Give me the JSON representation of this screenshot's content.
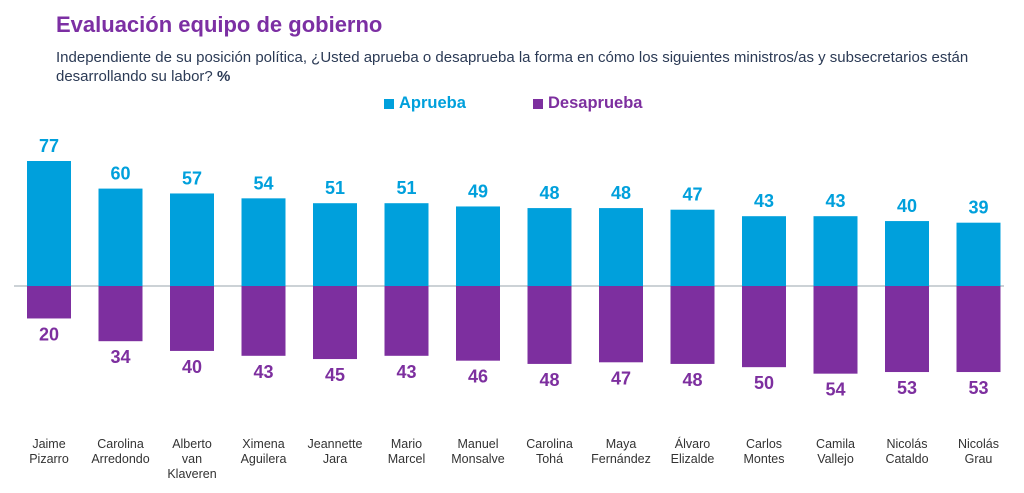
{
  "title": "Evaluación equipo de gobierno",
  "subtitle": "Independiente de su posición política, ¿Usted aprueba o desaprueba la forma en cómo los siguientes ministros/as y subsecretarios están desarrollando su labor?",
  "subtitle_unit": "%",
  "colors": {
    "approve": "#00a0dc",
    "disapprove": "#7d2f9f",
    "title": "#7c2fa3",
    "axis": "#9aa4ae"
  },
  "chart_data": {
    "type": "bar",
    "title": "Evaluación equipo de gobierno",
    "categories": [
      [
        "Jaime",
        "Pizarro"
      ],
      [
        "Carolina",
        "Arredondo"
      ],
      [
        "Alberto",
        "van",
        "Klaveren"
      ],
      [
        "Ximena",
        "Aguilera"
      ],
      [
        "Jeannette",
        "Jara"
      ],
      [
        "Mario",
        "Marcel"
      ],
      [
        "Manuel",
        "Monsalve"
      ],
      [
        "Carolina",
        "Tohá"
      ],
      [
        "Maya",
        "Fernández"
      ],
      [
        "Álvaro",
        "Elizalde"
      ],
      [
        "Carlos",
        "Montes"
      ],
      [
        "Camila",
        "Vallejo"
      ],
      [
        "Nicolás",
        "Cataldo"
      ],
      [
        "Nicolás",
        "Grau"
      ]
    ],
    "series": [
      {
        "name": "Aprueba",
        "values": [
          77,
          60,
          57,
          54,
          51,
          51,
          49,
          48,
          48,
          47,
          43,
          43,
          40,
          39
        ]
      },
      {
        "name": "Desaprueba",
        "values": [
          20,
          34,
          40,
          43,
          45,
          43,
          46,
          48,
          47,
          48,
          50,
          54,
          53,
          53
        ]
      }
    ],
    "legend_position": "top-left"
  }
}
